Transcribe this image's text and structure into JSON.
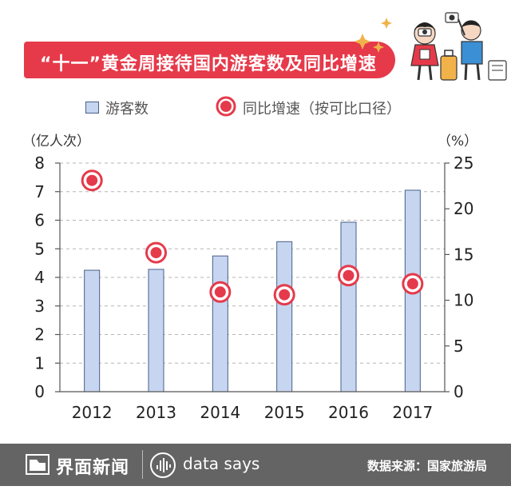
{
  "header": {
    "title": "“十一”黄金周接待国内游客数及同比增速"
  },
  "legend": {
    "bar_label": "游客数",
    "dot_label": "同比增速（按可比口径）"
  },
  "units": {
    "left": "（亿人次）",
    "right": "（%）"
  },
  "colors": {
    "banner": "#e63a4a",
    "bar_fill": "#c7d6f0",
    "bar_stroke": "#4a5d8a",
    "dot_red": "#e53a4b",
    "footer": "#646464"
  },
  "chart_data": {
    "type": "bar",
    "categories": [
      "2012",
      "2013",
      "2014",
      "2015",
      "2016",
      "2017"
    ],
    "series": [
      {
        "name": "游客数",
        "type": "bar",
        "axis": "left",
        "values": [
          4.25,
          4.28,
          4.75,
          5.25,
          5.93,
          7.05
        ]
      },
      {
        "name": "同比增速（按可比口径）",
        "type": "scatter",
        "axis": "right",
        "values": [
          23.1,
          15.2,
          10.9,
          10.6,
          12.7,
          11.8
        ]
      }
    ],
    "y_left": {
      "range": [
        0,
        8
      ],
      "ticks": [
        "0",
        "1",
        "2",
        "3",
        "4",
        "5",
        "6",
        "7",
        "8"
      ]
    },
    "y_right": {
      "range": [
        0,
        25
      ],
      "ticks": [
        "0",
        "5",
        "10",
        "15",
        "20",
        "25"
      ]
    },
    "grid": "dashed-horizontal"
  },
  "footer": {
    "brand": "界面新闻",
    "tagline": "data says",
    "source": "数据来源：国家旅游局"
  }
}
